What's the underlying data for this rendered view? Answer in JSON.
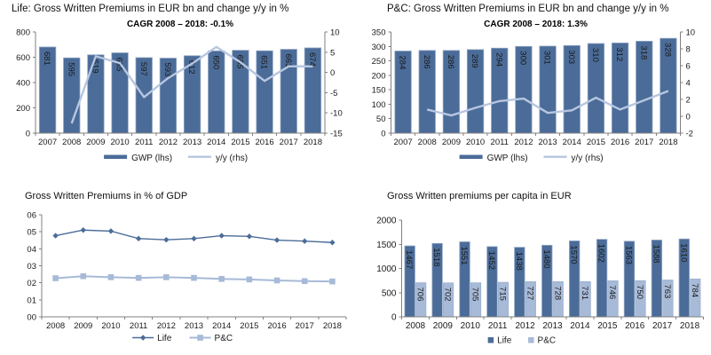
{
  "page": {
    "background": "#ffffff"
  },
  "colors": {
    "bar_dark": "#4b6c98",
    "bar_dark_edge": "#93a7c6",
    "bar_light": "#a7bad7",
    "bar_light_edge": "#94a9c8",
    "line_light": "#b7c6e1",
    "axis": "#808080",
    "text": "#1a1a1a",
    "bar_label": "#ffffff"
  },
  "chart_data": [
    {
      "type": "bar+line",
      "title": "Life: Gross Written Premiums in EUR bn and change y/y in %",
      "subtitle": "CAGR 2008 – 2018: -0.1%",
      "categories": [
        "2007",
        "2008",
        "2009",
        "2010",
        "2011",
        "2012",
        "2013",
        "2014",
        "2015",
        "2016",
        "2017",
        "2018"
      ],
      "bar_series": {
        "name": "GWP (lhs)",
        "axis": "left",
        "values": [
          681,
          595,
          619,
          635,
          597,
          593,
          612,
          650,
          655,
          651,
          663,
          674
        ]
      },
      "line_series": {
        "name": "y/y (rhs)",
        "axis": "right",
        "values": [
          null,
          -12.6,
          4.0,
          2.3,
          -6.1,
          -1.4,
          2.2,
          6.3,
          2.5,
          -2.1,
          1.5,
          1.5
        ]
      },
      "left_axis": {
        "min": 0,
        "max": 800,
        "step": 200
      },
      "right_axis": {
        "min": -15,
        "max": 10,
        "step": 5
      },
      "grid": false,
      "legend_position": "bottom"
    },
    {
      "type": "bar+line",
      "title": "P&C: Gross Written Premiums in EUR bn and change y/y in %",
      "subtitle": "CAGR 2008 – 2018: 1.3%",
      "categories": [
        "2007",
        "2008",
        "2009",
        "2010",
        "2011",
        "2012",
        "2013",
        "2014",
        "2015",
        "2016",
        "2017",
        "2018"
      ],
      "bar_series": {
        "name": "GWP (lhs)",
        "axis": "left",
        "values": [
          284,
          286,
          286,
          289,
          294,
          300,
          301,
          303,
          310,
          312,
          318,
          328
        ]
      },
      "line_series": {
        "name": "y/y (rhs)",
        "axis": "right",
        "values": [
          null,
          0.8,
          0.1,
          1.0,
          1.8,
          2.1,
          0.4,
          0.7,
          2.2,
          0.8,
          1.9,
          3.0
        ]
      },
      "left_axis": {
        "min": 0,
        "max": 350,
        "step": 50
      },
      "right_axis": {
        "min": -2,
        "max": 10,
        "step": 2
      },
      "grid": false,
      "legend_position": "bottom"
    },
    {
      "type": "line",
      "title": "Gross Written Premiums in % of GDP",
      "categories": [
        "2008",
        "2009",
        "2010",
        "2011",
        "2012",
        "2013",
        "2014",
        "2015",
        "2016",
        "2017",
        "2018"
      ],
      "series": [
        {
          "name": "Life",
          "marker": "diamond",
          "values": [
            4.77,
            5.1,
            5.04,
            4.6,
            4.53,
            4.6,
            4.77,
            4.73,
            4.51,
            4.45,
            4.37
          ]
        },
        {
          "name": "P&C",
          "marker": "square",
          "values": [
            2.27,
            2.39,
            2.33,
            2.29,
            2.33,
            2.29,
            2.23,
            2.2,
            2.14,
            2.1,
            2.08
          ]
        }
      ],
      "y_axis": {
        "min": 0,
        "max": 6,
        "step": 1,
        "tick_labels": [
          "00",
          "01",
          "02",
          "03",
          "04",
          "05",
          "06"
        ]
      },
      "grid": false,
      "legend_position": "bottom"
    },
    {
      "type": "bar",
      "grouped": true,
      "title": "Gross Written premiums per capita in EUR",
      "categories": [
        "2008",
        "2009",
        "2010",
        "2011",
        "2012",
        "2013",
        "2014",
        "2015",
        "2016",
        "2017",
        "2018"
      ],
      "series": [
        {
          "name": "Life",
          "values": [
            1467,
            1518,
            1551,
            1452,
            1438,
            1480,
            1570,
            1602,
            1563,
            1588,
            1610
          ]
        },
        {
          "name": "P&C",
          "values": [
            706,
            702,
            705,
            715,
            727,
            728,
            731,
            746,
            750,
            763,
            784
          ]
        }
      ],
      "y_axis": {
        "min": 0,
        "max": 2000,
        "step": 500
      },
      "grid": false,
      "legend_position": "bottom"
    }
  ]
}
